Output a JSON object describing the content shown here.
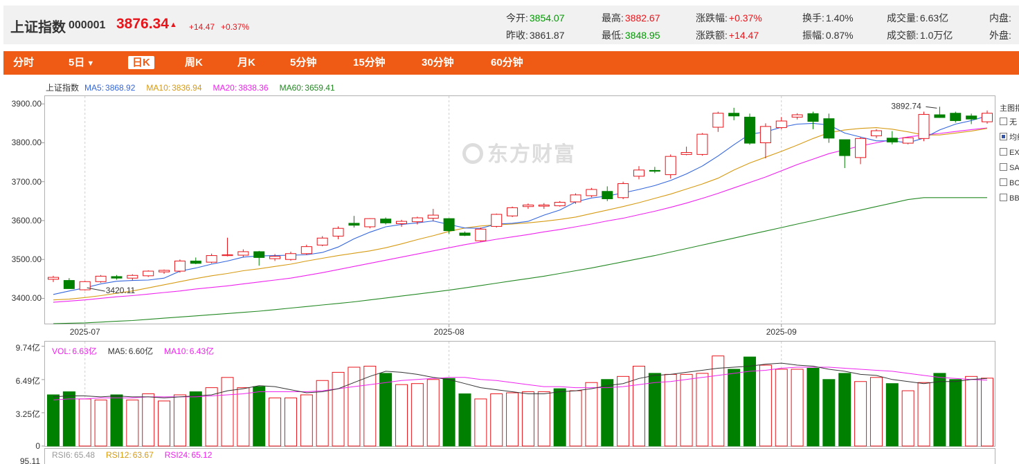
{
  "header": {
    "name": "上证指数",
    "code": "000001",
    "price": "3876.34",
    "arrow": "▲",
    "change": "+14.47",
    "change_pct": "+0.37%",
    "stats": [
      {
        "label": "今开:",
        "value": "3854.07",
        "tone": "green"
      },
      {
        "label": "最高:",
        "value": "3882.67",
        "tone": "red"
      },
      {
        "label": "涨跌幅:",
        "value": "+0.37%",
        "tone": "red"
      },
      {
        "label": "换手:",
        "value": "1.40%",
        "tone": "dark"
      },
      {
        "label": "成交量:",
        "value": "6.63亿",
        "tone": "dark"
      },
      {
        "label": "内盘:",
        "value": "",
        "tone": "dark"
      },
      {
        "label": "昨收:",
        "value": "3861.87",
        "tone": "dark"
      },
      {
        "label": "最低:",
        "value": "3848.95",
        "tone": "green"
      },
      {
        "label": "涨跌额:",
        "value": "+14.47",
        "tone": "red"
      },
      {
        "label": "振幅:",
        "value": "0.87%",
        "tone": "dark"
      },
      {
        "label": "成交额:",
        "value": "1.0万亿",
        "tone": "dark"
      },
      {
        "label": "外盘:",
        "value": "",
        "tone": "dark"
      }
    ]
  },
  "tabs": [
    {
      "label": "分时",
      "active": false
    },
    {
      "label": "5日",
      "active": false,
      "caret": "▼"
    },
    {
      "label": "日K",
      "active": true
    },
    {
      "label": "周K",
      "active": false
    },
    {
      "label": "月K",
      "active": false
    },
    {
      "label": "5分钟",
      "active": false
    },
    {
      "label": "15分钟",
      "active": false
    },
    {
      "label": "30分钟",
      "active": false
    },
    {
      "label": "60分钟",
      "active": false
    }
  ],
  "side_menu": {
    "title": "主图指",
    "items": [
      {
        "label": "无",
        "checked": false
      },
      {
        "label": "均线",
        "checked": true
      },
      {
        "label": "EXPMA",
        "checked": false
      },
      {
        "label": "SAR",
        "checked": false
      },
      {
        "label": "BOLL",
        "checked": false
      },
      {
        "label": "BBI",
        "checked": false
      }
    ]
  },
  "watermark": "东方财富",
  "colors": {
    "up": "#e8141a",
    "down": "#008000",
    "ma5": "#3366dd",
    "ma10": "#d69a12",
    "ma20": "#ee22ee",
    "ma60": "#228822",
    "rsi6": "#999999",
    "rsi12": "#d69a12",
    "rsi24": "#ee22ee"
  },
  "chart_data": [
    {
      "type": "candlestick",
      "title": "上证指数",
      "legend": [
        {
          "label": "MA5:",
          "value": "3868.92",
          "color": "#3366dd"
        },
        {
          "label": "MA10:",
          "value": "3836.94",
          "color": "#d69a12"
        },
        {
          "label": "MA20:",
          "value": "3838.36",
          "color": "#ee22ee"
        },
        {
          "label": "MA60:",
          "value": "3659.41",
          "color": "#228822"
        }
      ],
      "ylim": [
        3335,
        3920
      ],
      "yticks": [
        "3900.00",
        "3800.00",
        "3700.00",
        "3600.00",
        "3500.00",
        "3400.00"
      ],
      "ytick_values": [
        3900,
        3800,
        3700,
        3600,
        3500,
        3400
      ],
      "xticks": [
        {
          "label": "2025-07",
          "index": 2
        },
        {
          "label": "2025-08",
          "index": 25
        },
        {
          "label": "2025-09",
          "index": 46
        }
      ],
      "annotations": [
        {
          "text": "3420.11",
          "index": 2,
          "value": 3420.11
        },
        {
          "text": "3892.74",
          "index": 56,
          "value": 3892.74
        }
      ],
      "candles": [
        [
          3449,
          3458,
          3442,
          3454
        ],
        [
          3446,
          3452,
          3425,
          3425
        ],
        [
          3422,
          3445,
          3420.11,
          3443
        ],
        [
          3443,
          3460,
          3440,
          3457
        ],
        [
          3456,
          3460,
          3448,
          3452
        ],
        [
          3452,
          3462,
          3446,
          3459
        ],
        [
          3458,
          3472,
          3455,
          3470
        ],
        [
          3468,
          3474,
          3463,
          3472
        ],
        [
          3470,
          3500,
          3466,
          3496
        ],
        [
          3496,
          3505,
          3488,
          3490
        ],
        [
          3493,
          3515,
          3490,
          3510
        ],
        [
          3512,
          3556,
          3508,
          3512
        ],
        [
          3511,
          3526,
          3505,
          3520
        ],
        [
          3520,
          3522,
          3484,
          3505
        ],
        [
          3502,
          3514,
          3496,
          3508
        ],
        [
          3500,
          3520,
          3497,
          3515
        ],
        [
          3515,
          3538,
          3512,
          3533
        ],
        [
          3537,
          3560,
          3534,
          3555
        ],
        [
          3560,
          3585,
          3552,
          3580
        ],
        [
          3593,
          3612,
          3582,
          3588
        ],
        [
          3584,
          3606,
          3580,
          3605
        ],
        [
          3604,
          3608,
          3590,
          3594
        ],
        [
          3592,
          3602,
          3584,
          3598
        ],
        [
          3597,
          3610,
          3590,
          3607
        ],
        [
          3606,
          3630,
          3598,
          3614
        ],
        [
          3605,
          3606,
          3566,
          3574
        ],
        [
          3568,
          3572,
          3560,
          3562
        ],
        [
          3548,
          3582,
          3546,
          3578
        ],
        [
          3585,
          3618,
          3582,
          3616
        ],
        [
          3612,
          3636,
          3609,
          3633
        ],
        [
          3636,
          3644,
          3630,
          3640
        ],
        [
          3637,
          3645,
          3630,
          3640
        ],
        [
          3638,
          3650,
          3636,
          3647
        ],
        [
          3648,
          3670,
          3643,
          3666
        ],
        [
          3664,
          3684,
          3660,
          3680
        ],
        [
          3675,
          3688,
          3650,
          3656
        ],
        [
          3659,
          3700,
          3655,
          3695
        ],
        [
          3714,
          3740,
          3706,
          3730
        ],
        [
          3729,
          3738,
          3722,
          3727
        ],
        [
          3718,
          3770,
          3708,
          3765
        ],
        [
          3770,
          3790,
          3768,
          3775
        ],
        [
          3770,
          3825,
          3767,
          3822
        ],
        [
          3840,
          3880,
          3828,
          3876
        ],
        [
          3876,
          3890,
          3858,
          3869
        ],
        [
          3866,
          3875,
          3795,
          3799
        ],
        [
          3800,
          3850,
          3760,
          3842
        ],
        [
          3839,
          3866,
          3835,
          3856
        ],
        [
          3866,
          3876,
          3860,
          3872
        ],
        [
          3875,
          3880,
          3835,
          3855
        ],
        [
          3862,
          3875,
          3800,
          3812
        ],
        [
          3808,
          3805,
          3735,
          3767
        ],
        [
          3762,
          3815,
          3745,
          3811
        ],
        [
          3818,
          3835,
          3812,
          3831
        ],
        [
          3812,
          3830,
          3796,
          3802
        ],
        [
          3799,
          3815,
          3796,
          3813
        ],
        [
          3811,
          3880,
          3804,
          3873
        ],
        [
          3872,
          3892.74,
          3864,
          3865
        ],
        [
          3876,
          3880,
          3852,
          3857
        ],
        [
          3869,
          3875,
          3848,
          3861
        ],
        [
          3854,
          3883,
          3849,
          3876
        ]
      ],
      "ma5": [
        3410,
        3419,
        3427,
        3437,
        3444,
        3446,
        3447,
        3452,
        3470,
        3478,
        3488,
        3496,
        3506,
        3509,
        3510,
        3511,
        3512,
        3518,
        3532,
        3553,
        3570,
        3584,
        3590,
        3594,
        3599,
        3590,
        3581,
        3580,
        3591,
        3593,
        3598,
        3614,
        3627,
        3648,
        3658,
        3663,
        3671,
        3680,
        3690,
        3703,
        3720,
        3740,
        3766,
        3795,
        3822,
        3828,
        3840,
        3848,
        3850,
        3846,
        3825,
        3815,
        3805,
        3805,
        3800,
        3812,
        3833,
        3848,
        3857,
        3869
      ],
      "ma10": [
        3396,
        3398,
        3402,
        3407,
        3413,
        3419,
        3427,
        3435,
        3443,
        3451,
        3458,
        3464,
        3471,
        3476,
        3482,
        3488,
        3496,
        3503,
        3510,
        3516,
        3522,
        3530,
        3540,
        3551,
        3561,
        3572,
        3581,
        3586,
        3589,
        3591,
        3594,
        3598,
        3603,
        3609,
        3618,
        3627,
        3636,
        3646,
        3657,
        3668,
        3681,
        3694,
        3709,
        3730,
        3748,
        3763,
        3778,
        3794,
        3811,
        3826,
        3833,
        3837,
        3839,
        3835,
        3828,
        3820,
        3820,
        3825,
        3830,
        3837
      ],
      "ma20": [
        3390,
        3393,
        3396,
        3400,
        3404,
        3407,
        3411,
        3415,
        3419,
        3424,
        3428,
        3432,
        3437,
        3442,
        3447,
        3452,
        3459,
        3466,
        3474,
        3482,
        3490,
        3498,
        3506,
        3514,
        3522,
        3530,
        3538,
        3545,
        3552,
        3558,
        3564,
        3571,
        3577,
        3584,
        3591,
        3599,
        3606,
        3615,
        3624,
        3634,
        3645,
        3657,
        3670,
        3684,
        3698,
        3712,
        3728,
        3744,
        3758,
        3772,
        3782,
        3792,
        3800,
        3808,
        3815,
        3820,
        3824,
        3829,
        3834,
        3838
      ],
      "ma60": [
        3335,
        3336,
        3337,
        3339,
        3341,
        3343,
        3346,
        3349,
        3352,
        3355,
        3358,
        3361,
        3364,
        3367,
        3371,
        3375,
        3379,
        3383,
        3387,
        3391,
        3396,
        3401,
        3406,
        3411,
        3416,
        3421,
        3427,
        3433,
        3439,
        3445,
        3451,
        3457,
        3464,
        3471,
        3478,
        3486,
        3494,
        3502,
        3510,
        3519,
        3528,
        3537,
        3546,
        3555,
        3564,
        3573,
        3582,
        3591,
        3600,
        3609,
        3618,
        3627,
        3636,
        3645,
        3654,
        3659,
        3659,
        3659,
        3659,
        3659
      ]
    },
    {
      "type": "bar",
      "title": "VOL",
      "legend": [
        {
          "label": "VOL:",
          "value": "6.63亿",
          "color": "#ee22ee"
        },
        {
          "label": "MA5:",
          "value": "6.60亿",
          "color": "#333333"
        },
        {
          "label": "MA10:",
          "value": "6.43亿",
          "color": "#ee22ee"
        }
      ],
      "ylim": [
        0,
        10.2
      ],
      "yticks": [
        "9.74亿",
        "6.49亿",
        "3.25亿",
        "0"
      ],
      "ytick_values": [
        9.74,
        6.49,
        3.25,
        0
      ],
      "unit": "亿",
      "values": [
        5.0,
        5.3,
        4.6,
        4.5,
        5.0,
        4.5,
        5.1,
        4.4,
        5.0,
        5.3,
        5.7,
        6.7,
        5.7,
        5.8,
        4.7,
        4.7,
        5.0,
        6.4,
        7.2,
        7.7,
        7.8,
        7.1,
        6.0,
        6.1,
        6.5,
        6.6,
        5.1,
        4.6,
        5.1,
        5.2,
        5.3,
        5.3,
        5.6,
        5.4,
        6.2,
        6.5,
        6.8,
        7.8,
        7.1,
        7.0,
        7.0,
        7.1,
        8.8,
        7.5,
        8.7,
        7.9,
        7.5,
        7.5,
        7.6,
        6.5,
        7.1,
        6.3,
        6.7,
        6.1,
        5.4,
        6.2,
        7.1,
        6.5,
        6.8,
        6.63
      ],
      "ma5": [
        4.8,
        4.9,
        4.9,
        4.8,
        4.9,
        4.8,
        4.8,
        4.7,
        4.8,
        4.9,
        5.0,
        5.4,
        5.6,
        5.9,
        5.8,
        5.5,
        5.2,
        5.3,
        5.6,
        6.2,
        6.8,
        7.3,
        7.2,
        7.0,
        6.7,
        6.5,
        6.1,
        5.7,
        5.5,
        5.3,
        5.1,
        5.1,
        5.3,
        5.4,
        5.6,
        5.9,
        6.1,
        6.6,
        6.9,
        7.0,
        7.2,
        7.4,
        7.6,
        7.7,
        7.8,
        8.0,
        8.1,
        7.9,
        7.8,
        7.5,
        7.3,
        7.0,
        6.9,
        6.5,
        6.3,
        6.1,
        6.3,
        6.3,
        6.5,
        6.6
      ],
      "ma10": [
        4.5,
        4.6,
        4.6,
        4.7,
        4.7,
        4.7,
        4.8,
        4.8,
        4.8,
        4.8,
        4.9,
        5.0,
        5.1,
        5.3,
        5.3,
        5.3,
        5.3,
        5.4,
        5.6,
        5.8,
        6.0,
        6.2,
        6.4,
        6.5,
        6.6,
        6.7,
        6.7,
        6.5,
        6.4,
        6.2,
        6.0,
        5.8,
        5.8,
        5.7,
        5.7,
        5.7,
        5.8,
        6.0,
        6.2,
        6.3,
        6.5,
        6.7,
        6.9,
        7.1,
        7.3,
        7.4,
        7.6,
        7.7,
        7.7,
        7.7,
        7.6,
        7.5,
        7.4,
        7.3,
        7.1,
        6.9,
        6.7,
        6.6,
        6.5,
        6.43
      ],
      "colors_up": [
        false,
        false,
        true,
        true,
        false,
        true,
        true,
        true,
        true,
        false,
        true,
        true,
        true,
        false,
        true,
        true,
        true,
        true,
        true,
        true,
        true,
        false,
        true,
        true,
        true,
        false,
        false,
        true,
        true,
        true,
        true,
        true,
        false,
        true,
        true,
        false,
        true,
        true,
        false,
        true,
        true,
        true,
        true,
        false,
        false,
        true,
        true,
        true,
        false,
        false,
        false,
        true,
        true,
        false,
        true,
        true,
        false,
        false,
        true,
        true
      ]
    },
    {
      "type": "line",
      "title": "RSI",
      "legend": [
        {
          "label": "RSI6:",
          "value": "65.48",
          "color": "#999999"
        },
        {
          "label": "RSI12:",
          "value": "63.67",
          "color": "#d69a12"
        },
        {
          "label": "RSI24:",
          "value": "65.12",
          "color": "#ee22ee"
        }
      ],
      "yticks": [
        "95.11"
      ]
    }
  ]
}
